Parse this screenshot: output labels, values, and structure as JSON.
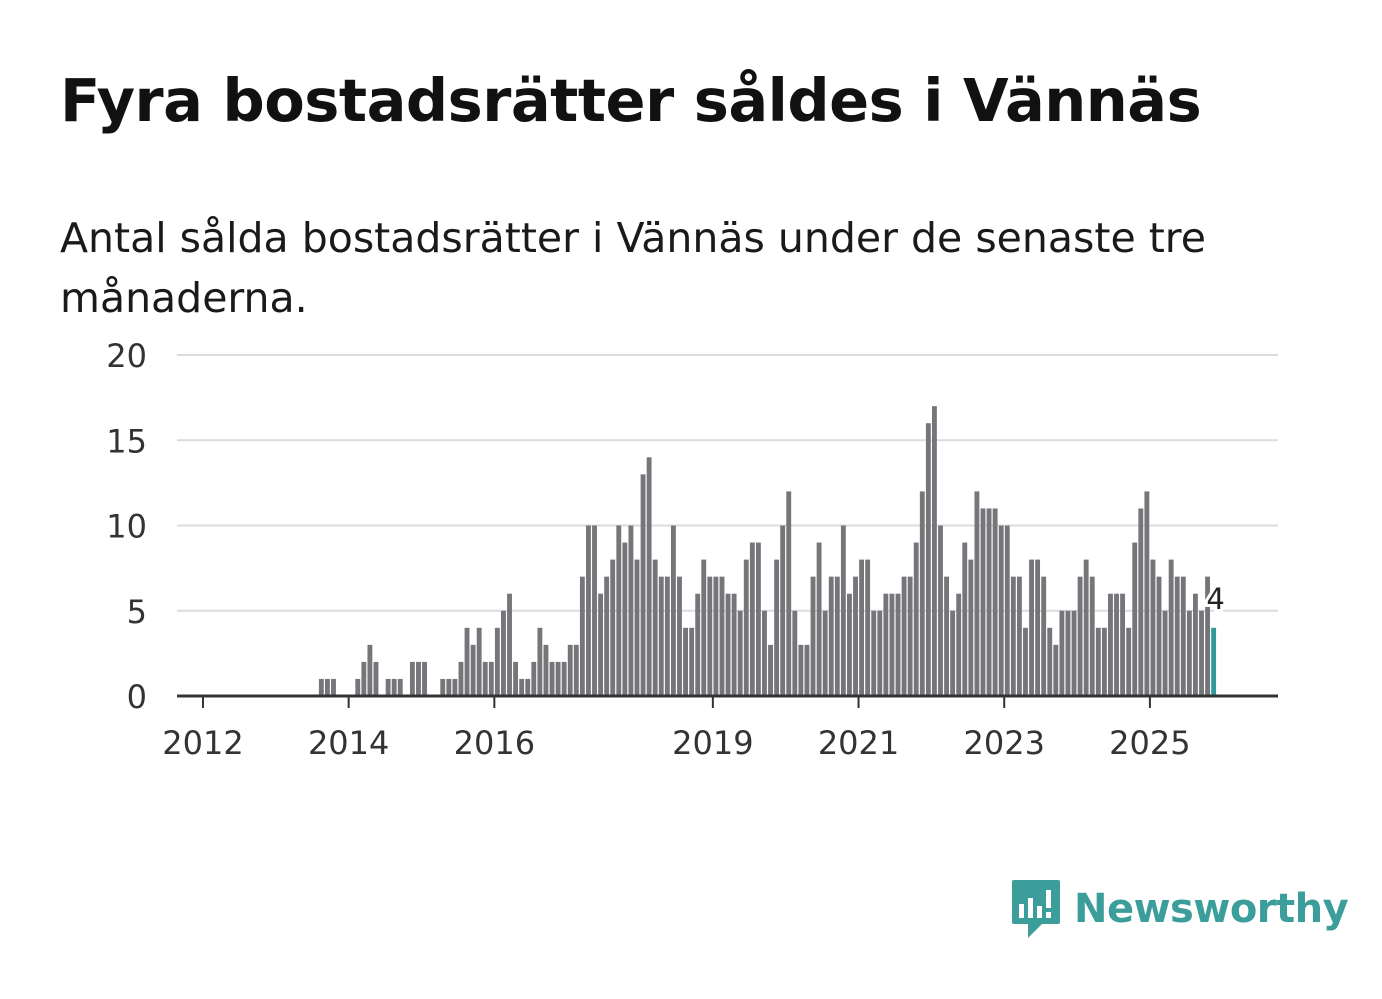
{
  "header": {
    "title": "Fyra bostadsrätter såldes i Vännäs",
    "subtitle": "Antal sålda bostadsrätter i Vännäs under de senaste tre månaderna."
  },
  "brand": {
    "name": "Newsworthy",
    "color": "#3c9e9b"
  },
  "chart_data": {
    "type": "bar",
    "title": "Fyra bostadsrätter såldes i Vännäs",
    "subtitle": "Antal sålda bostadsrätter i Vännäs under de senaste tre månaderna.",
    "xlabel": "",
    "ylabel": "",
    "ylim": [
      0,
      20
    ],
    "yticks": [
      0,
      5,
      10,
      15,
      20
    ],
    "xticks": [
      "2012",
      "2014",
      "2016",
      "2019",
      "2021",
      "2023",
      "2025"
    ],
    "start": "2011-07",
    "grid": true,
    "bar_color": "#76757a",
    "highlight_color": "#2e9b9a",
    "series": [
      {
        "name": "Antal sålda bostadsrätter",
        "values": [
          0,
          0,
          0,
          0,
          0,
          0,
          0,
          0,
          0,
          0,
          0,
          0,
          0,
          0,
          0,
          0,
          0,
          0,
          0,
          0,
          0,
          0,
          0,
          0,
          0,
          1,
          1,
          1,
          0,
          0,
          0,
          1,
          2,
          3,
          2,
          0,
          1,
          1,
          1,
          0,
          2,
          2,
          2,
          0,
          0,
          1,
          1,
          1,
          2,
          4,
          3,
          4,
          2,
          2,
          4,
          5,
          6,
          2,
          1,
          1,
          2,
          4,
          3,
          2,
          2,
          2,
          3,
          3,
          7,
          10,
          10,
          6,
          7,
          8,
          10,
          9,
          10,
          8,
          13,
          14,
          8,
          7,
          7,
          10,
          7,
          4,
          4,
          6,
          8,
          7,
          7,
          7,
          6,
          6,
          5,
          8,
          9,
          9,
          5,
          3,
          8,
          10,
          12,
          5,
          3,
          3,
          7,
          9,
          5,
          7,
          7,
          10,
          6,
          7,
          8,
          8,
          5,
          5,
          6,
          6,
          6,
          7,
          7,
          9,
          12,
          16,
          17,
          10,
          7,
          5,
          6,
          9,
          8,
          12,
          11,
          11,
          11,
          10,
          10,
          7,
          7,
          4,
          8,
          8,
          7,
          4,
          3,
          5,
          5,
          5,
          7,
          8,
          7,
          4,
          4,
          6,
          6,
          6,
          4,
          9,
          11,
          12,
          8,
          7,
          5,
          8,
          7,
          7,
          5,
          6,
          5,
          7,
          4
        ]
      }
    ],
    "highlight": {
      "value": 4,
      "label": "4"
    }
  }
}
